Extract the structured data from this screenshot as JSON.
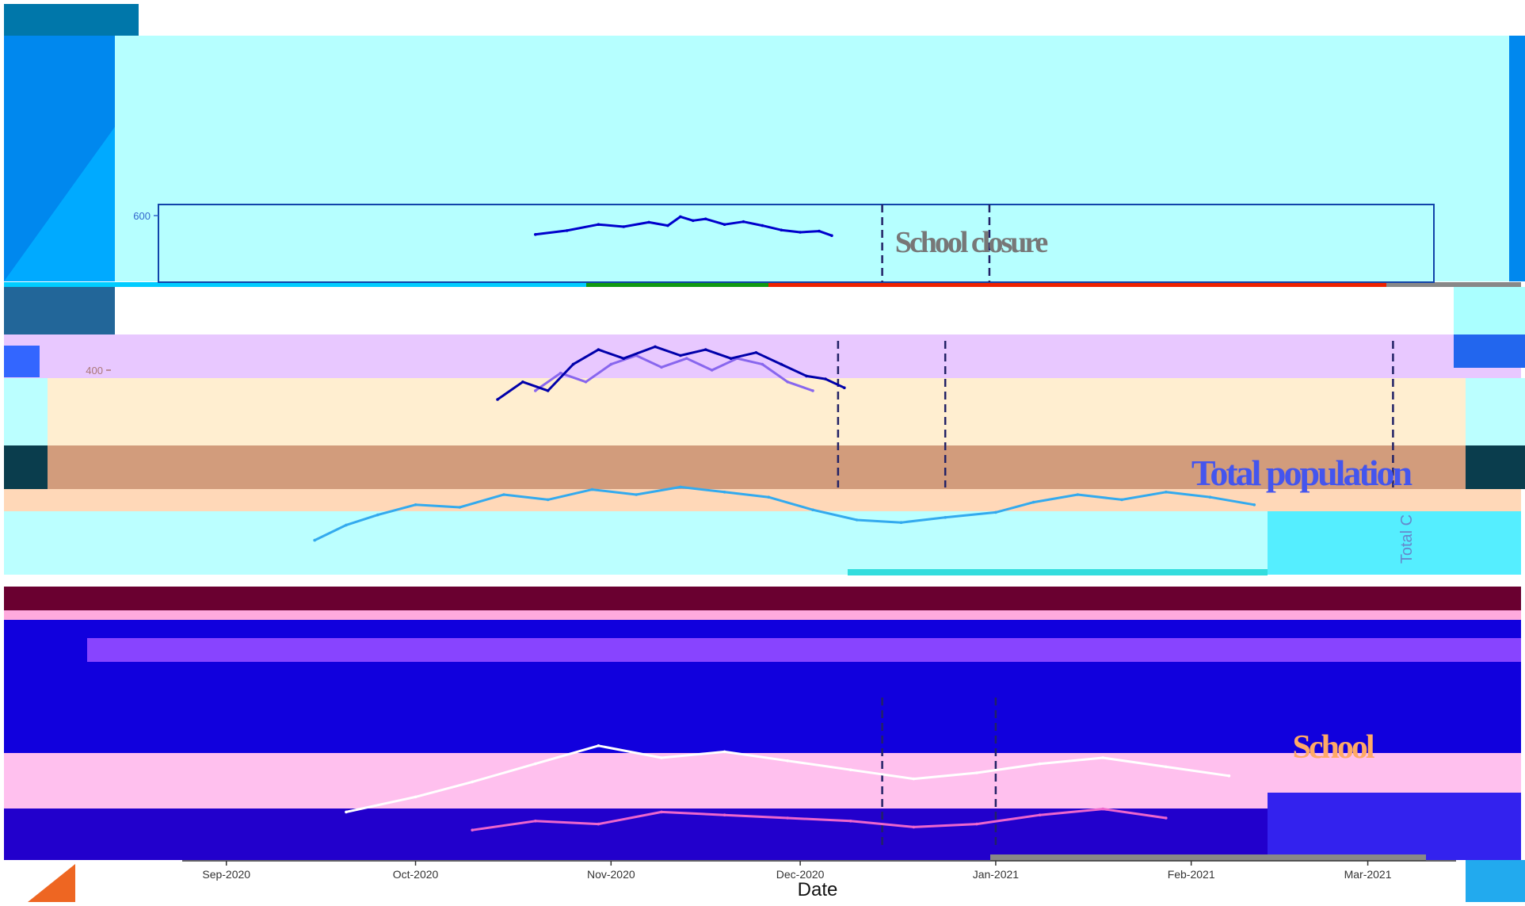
{
  "chart_data": {
    "type": "line",
    "title": "",
    "xlabel": "Date",
    "ylabel": "",
    "y_axis_fragment": "Total C",
    "x_tick_labels": [
      "Sep-2020",
      "Oct-2020",
      "Nov-2020",
      "Dec-2020",
      "Jan-2021",
      "Feb-2021",
      "Mar-2021"
    ],
    "x_ticks": [
      "2020-09-01",
      "2020-10-01",
      "2020-11-01",
      "2020-12-01",
      "2021-01-01",
      "2021-02-01",
      "2021-03-01"
    ],
    "xlim": [
      "2020-08-25",
      "2021-03-15"
    ],
    "panels": [
      {
        "label": "School closure",
        "y_ticks": [
          600
        ],
        "ylim": [
          0,
          700
        ],
        "vlines": [
          "2020-12-14",
          "2020-12-31"
        ],
        "series": [
          {
            "color": "#0000cc",
            "x": [
              "2020-10-20",
              "2020-10-25",
              "2020-10-30",
              "2020-11-03",
              "2020-11-07",
              "2020-11-10",
              "2020-11-12",
              "2020-11-14",
              "2020-11-16",
              "2020-11-19",
              "2020-11-22",
              "2020-11-25",
              "2020-11-28",
              "2020-12-01",
              "2020-12-04",
              "2020-12-06"
            ],
            "y": [
              430,
              465,
              520,
              500,
              540,
              510,
              590,
              555,
              570,
              520,
              545,
              510,
              470,
              450,
              460,
              420
            ]
          }
        ]
      },
      {
        "label": "",
        "y_ticks": [
          400
        ],
        "ylim": [
          0,
          500
        ],
        "vlines": [
          "2020-12-07",
          "2020-12-24",
          "2021-03-05"
        ],
        "series": [
          {
            "color": "#8866ee",
            "x": [
              "2020-10-20",
              "2020-10-24",
              "2020-10-28",
              "2020-11-01",
              "2020-11-05",
              "2020-11-09",
              "2020-11-13",
              "2020-11-17",
              "2020-11-21",
              "2020-11-25",
              "2020-11-29",
              "2020-12-03"
            ],
            "y": [
              330,
              390,
              360,
              420,
              450,
              410,
              440,
              400,
              440,
              420,
              360,
              330
            ]
          },
          {
            "color": "#0000aa",
            "x": [
              "2020-10-14",
              "2020-10-18",
              "2020-10-22",
              "2020-10-26",
              "2020-10-30",
              "2020-11-03",
              "2020-11-08",
              "2020-11-12",
              "2020-11-16",
              "2020-11-20",
              "2020-11-24",
              "2020-11-28",
              "2020-12-02",
              "2020-12-05",
              "2020-12-08"
            ],
            "y": [
              300,
              360,
              330,
              420,
              470,
              440,
              480,
              450,
              470,
              440,
              460,
              420,
              380,
              370,
              340
            ]
          }
        ]
      },
      {
        "label": "Total population",
        "y_ticks": [],
        "ylim": [
          0,
          500
        ],
        "vlines": [],
        "series": [
          {
            "color": "#33aaee",
            "x": [
              "2020-09-15",
              "2020-09-20",
              "2020-09-25",
              "2020-10-01",
              "2020-10-08",
              "2020-10-15",
              "2020-10-22",
              "2020-10-29",
              "2020-11-05",
              "2020-11-12",
              "2020-11-19",
              "2020-11-26",
              "2020-12-03",
              "2020-12-10",
              "2020-12-17",
              "2020-12-24",
              "2021-01-01",
              "2021-01-07",
              "2021-01-14",
              "2021-01-21",
              "2021-01-28",
              "2021-02-04",
              "2021-02-11"
            ],
            "y": [
              120,
              180,
              220,
              260,
              250,
              300,
              280,
              320,
              300,
              330,
              310,
              290,
              240,
              200,
              190,
              210,
              230,
              270,
              300,
              280,
              310,
              290,
              260
            ]
          }
        ]
      },
      {
        "label": "School",
        "y_ticks": [],
        "ylim": [
          0,
          500
        ],
        "vlines": [
          "2020-12-14",
          "2021-01-01"
        ],
        "series": [
          {
            "color": "#ee66cc",
            "x": [
              "2020-10-10",
              "2020-10-20",
              "2020-10-30",
              "2020-11-09",
              "2020-11-19",
              "2020-11-29",
              "2020-12-09",
              "2020-12-19",
              "2020-12-29",
              "2021-01-08",
              "2021-01-18",
              "2021-01-28"
            ],
            "y": [
              60,
              90,
              80,
              120,
              110,
              100,
              90,
              70,
              80,
              110,
              130,
              100
            ]
          },
          {
            "color": "#ffffff",
            "x": [
              "2020-09-20",
              "2020-10-01",
              "2020-10-10",
              "2020-10-20",
              "2020-10-30",
              "2020-11-09",
              "2020-11-19",
              "2020-11-29",
              "2020-12-09",
              "2020-12-19",
              "2020-12-29",
              "2021-01-08",
              "2021-01-18",
              "2021-01-28",
              "2021-02-07"
            ],
            "y": [
              120,
              170,
              220,
              280,
              340,
              300,
              320,
              290,
              260,
              230,
              250,
              280,
              300,
              270,
              240
            ]
          }
        ]
      }
    ]
  }
}
